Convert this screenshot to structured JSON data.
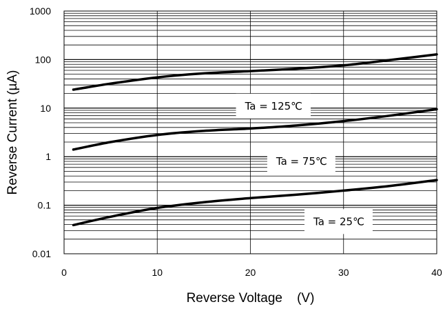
{
  "chart_data": {
    "type": "line",
    "xlabel": "Reverse Voltage    (V)",
    "ylabel": "Reverse Current (µA)",
    "xlim": [
      0,
      40
    ],
    "ylim": [
      0.01,
      1000
    ],
    "yscale": "log",
    "grid": true,
    "x_ticks": [
      0,
      10,
      20,
      30,
      40
    ],
    "x_tick_labels": [
      "0",
      "10",
      "20",
      "30",
      "40"
    ],
    "y_ticks": [
      0.01,
      0.1,
      1,
      10,
      100,
      1000
    ],
    "y_tick_labels": [
      "0.01",
      "0.1",
      "1",
      "10",
      "100",
      "1000"
    ],
    "line_color": "#000000",
    "series": [
      {
        "x": [
          1,
          5,
          10,
          15,
          20,
          25,
          30,
          35,
          40
        ],
        "y": [
          24,
          32,
          43,
          52,
          58,
          65,
          76,
          98,
          128
        ],
        "label_text": "Ta = 125℃",
        "label_at": {
          "x": 22.5,
          "y": 11
        }
      },
      {
        "x": [
          1,
          5,
          10,
          15,
          20,
          25,
          30,
          35,
          40
        ],
        "y": [
          1.4,
          2.0,
          2.8,
          3.4,
          3.8,
          4.4,
          5.4,
          7.0,
          9.5
        ],
        "label_text": "Ta = 75℃",
        "label_at": {
          "x": 25.5,
          "y": 0.8
        }
      },
      {
        "x": [
          1,
          5,
          10,
          15,
          20,
          25,
          30,
          35,
          40
        ],
        "y": [
          0.039,
          0.058,
          0.088,
          0.115,
          0.14,
          0.165,
          0.2,
          0.25,
          0.33
        ],
        "label_text": "Ta = 25℃",
        "label_at": {
          "x": 29.5,
          "y": 0.046
        }
      }
    ]
  }
}
